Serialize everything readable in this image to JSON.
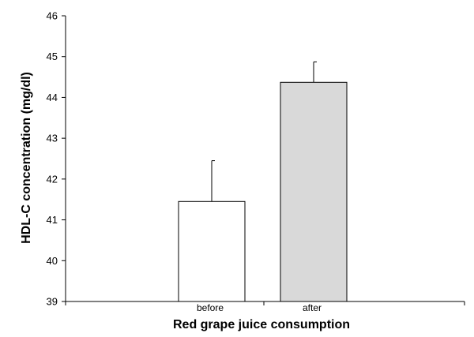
{
  "chart_data": {
    "type": "bar",
    "title": "",
    "xlabel": "Red grape juice consumption",
    "ylabel": "HDL-C concentration (mg/dl)",
    "categories": [
      "before",
      "after"
    ],
    "values": [
      41.45,
      44.37
    ],
    "error_plus": [
      1.0,
      0.5
    ],
    "bar_colors": [
      "#ffffff",
      "#d9d9d9"
    ],
    "ylim": [
      39,
      46
    ],
    "yticks": [
      "39",
      "40",
      "41",
      "42",
      "43",
      "44",
      "45",
      "46"
    ],
    "grid": false,
    "legend": "none"
  }
}
